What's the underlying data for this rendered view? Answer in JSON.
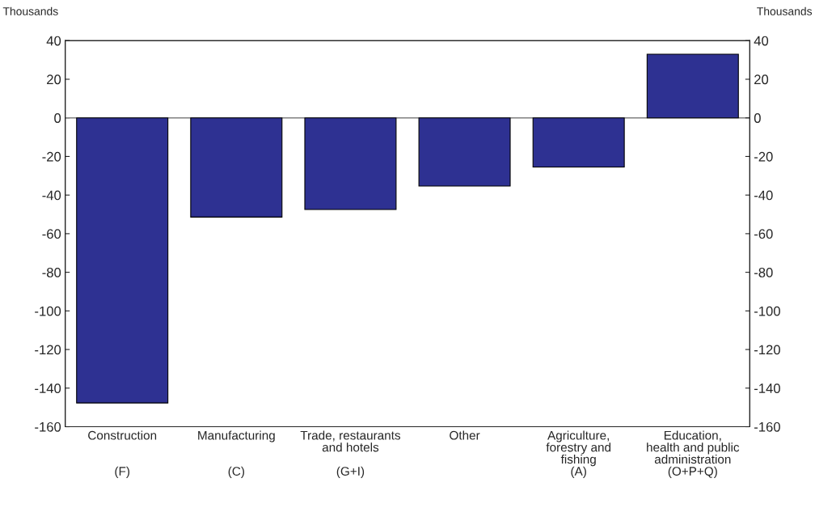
{
  "chart_data": {
    "type": "bar",
    "ylabel": "Thousands",
    "y2label": "Thousands",
    "categories": [
      "Construction\n\n\n(F)",
      "Manufacturing\n\n\n(C)",
      "Trade, restaurants\nand hotels\n\n(G+I)",
      "Other",
      "Agriculture,\nforestry and\nfishing\n(A)",
      "Education,\nhealth and public\nadministration\n(O+P+Q)"
    ],
    "values": [
      -147.7,
      -51.4,
      -47.5,
      -35.3,
      -25.5,
      33
    ],
    "color": "#2e3192",
    "ylim": [
      -160,
      40
    ],
    "yticks": [
      -160,
      -140,
      -120,
      -100,
      -80,
      -60,
      -40,
      -20,
      0,
      20,
      40
    ],
    "y2lim": [
      -160,
      40
    ],
    "y2ticks": [
      -160,
      -140,
      -120,
      -100,
      -80,
      -60,
      -40,
      -20,
      0,
      20,
      40
    ],
    "ref_lines": [
      {
        "axis": "y",
        "value": 0,
        "color": "#808080"
      }
    ],
    "grid": false,
    "legend": false
  }
}
